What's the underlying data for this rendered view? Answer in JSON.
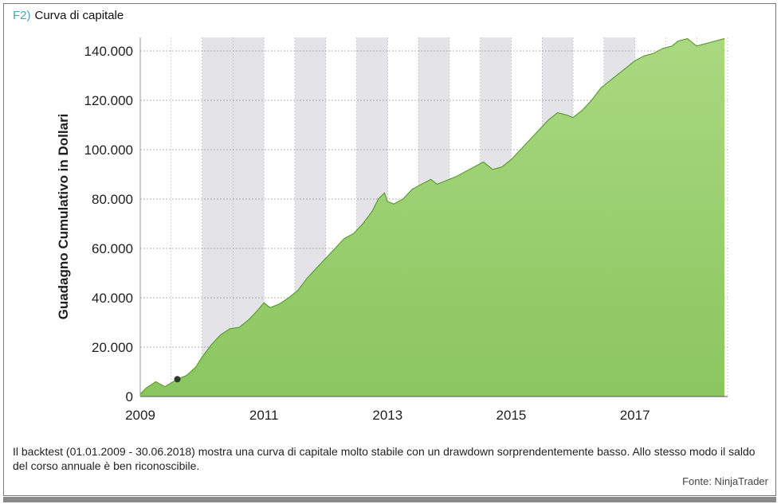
{
  "figure": {
    "label": "F2)",
    "title": "Curva di capitale",
    "caption": "Il backtest (01.01.2009 - 30.06.2018) mostra una curva di capitale molto stabile con un drawdown sorprendentemente basso. Allo stesso modo il saldo del corso annuale è ben riconoscibile.",
    "source": "Fonte: NinjaTrader"
  },
  "colors": {
    "fill_top": "#a9d880",
    "fill_bottom": "#8bc660",
    "line": "#5e9d37",
    "band": "#e3e3e8",
    "marker": "#2c3a2c"
  },
  "chart_data": {
    "type": "area",
    "title": "",
    "xlabel": "",
    "ylabel": "Guadagno Cumulativo in Dollari",
    "xlim": [
      2009.0,
      2018.5
    ],
    "ylim": [
      0,
      140000
    ],
    "yticks": [
      0,
      20000,
      40000,
      60000,
      80000,
      100000,
      120000,
      140000
    ],
    "ytick_labels": [
      "0",
      "20.000",
      "40.000",
      "60.000",
      "80.000",
      "100.000",
      "120.000",
      "140.000"
    ],
    "xticks": [
      2009,
      2011,
      2013,
      2015,
      2017
    ],
    "xtick_labels": [
      "2009",
      "2011",
      "2013",
      "2015",
      "2017"
    ],
    "grid": true,
    "shaded_bands": [
      [
        2010,
        2011
      ],
      [
        2011.5,
        2012
      ],
      [
        2012.5,
        2013
      ],
      [
        2013.5,
        2014
      ],
      [
        2014.5,
        2015
      ],
      [
        2015.5,
        2016
      ],
      [
        2016.5,
        2017
      ]
    ],
    "marker": {
      "x": 2009.6,
      "y": 7000
    },
    "series": [
      {
        "name": "",
        "x": [
          2009.0,
          2009.1,
          2009.25,
          2009.4,
          2009.5,
          2009.6,
          2009.75,
          2009.9,
          2010.0,
          2010.15,
          2010.3,
          2010.45,
          2010.6,
          2010.75,
          2010.9,
          2011.0,
          2011.1,
          2011.25,
          2011.4,
          2011.55,
          2011.7,
          2011.85,
          2012.0,
          2012.15,
          2012.3,
          2012.45,
          2012.6,
          2012.75,
          2012.85,
          2012.95,
          2013.0,
          2013.1,
          2013.25,
          2013.4,
          2013.55,
          2013.7,
          2013.8,
          2013.95,
          2014.1,
          2014.25,
          2014.4,
          2014.55,
          2014.7,
          2014.85,
          2015.0,
          2015.15,
          2015.3,
          2015.45,
          2015.6,
          2015.75,
          2015.9,
          2016.0,
          2016.15,
          2016.3,
          2016.45,
          2016.6,
          2016.75,
          2016.9,
          2017.0,
          2017.15,
          2017.3,
          2017.45,
          2017.6,
          2017.7,
          2017.85,
          2018.0,
          2018.15,
          2018.3,
          2018.45
        ],
        "y": [
          1000,
          3500,
          6000,
          4000,
          5500,
          7000,
          8500,
          12000,
          16000,
          21000,
          25000,
          27500,
          28000,
          31000,
          35000,
          38000,
          36000,
          37500,
          40000,
          43000,
          48000,
          52000,
          56000,
          60000,
          64000,
          66000,
          70000,
          75000,
          80000,
          82500,
          79000,
          78000,
          80000,
          84000,
          86000,
          88000,
          86000,
          87500,
          89000,
          91000,
          93000,
          95000,
          92000,
          93000,
          96000,
          100000,
          104000,
          108000,
          112000,
          115000,
          114000,
          113000,
          116000,
          120000,
          125000,
          128000,
          131000,
          134000,
          136000,
          138000,
          139000,
          141000,
          142000,
          144000,
          145000,
          142000,
          143000,
          144000,
          145000
        ]
      }
    ]
  }
}
